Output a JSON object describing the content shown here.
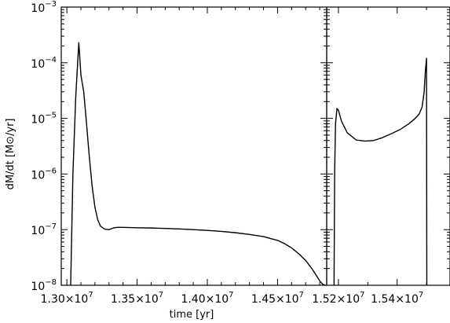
{
  "chart_data": {
    "type": "line",
    "xlabel": "time [yr]",
    "ylabel": "dM/dt [M⊙/yr]",
    "yscale": "log",
    "ylim": [
      1e-08,
      0.001
    ],
    "grid": false,
    "y_ticks": [
      {
        "value": 1e-08,
        "mantissa": "10",
        "exp": "−8"
      },
      {
        "value": 1e-07,
        "mantissa": "10",
        "exp": "−7"
      },
      {
        "value": 1e-06,
        "mantissa": "10",
        "exp": "−6"
      },
      {
        "value": 1e-05,
        "mantissa": "10",
        "exp": "−5"
      },
      {
        "value": 0.0001,
        "mantissa": "10",
        "exp": "−4"
      },
      {
        "value": 0.001,
        "mantissa": "10",
        "exp": "−3"
      }
    ],
    "panels": [
      {
        "xlim": [
          12960000,
          14850000
        ],
        "x_ticks": [
          {
            "value": 13000000,
            "mantissa": "1.30×10",
            "exp": "7"
          },
          {
            "value": 13500000,
            "mantissa": "1.35×10",
            "exp": "7"
          },
          {
            "value": 14000000,
            "mantissa": "1.40×10",
            "exp": "7"
          },
          {
            "value": 14500000,
            "mantissa": "1.45×10",
            "exp": "7"
          }
        ],
        "minor_step": 100000,
        "series": [
          {
            "x": [
              13027000,
              13043000,
              13063000,
              13085000,
              13100000,
              13120000,
              13140000,
              13160000,
              13180000,
              13200000,
              13220000,
              13240000,
              13270000,
              13300000,
              13330000,
              13360000,
              13400000,
              13500000,
              13600000,
              13700000,
              13800000,
              13900000,
              14000000,
              14100000,
              14200000,
              14300000,
              14400000,
              14500000,
              14550000,
              14600000,
              14650000,
              14700000,
              14750000,
              14780000,
              14800000,
              14820000,
              14840000
            ],
            "y": [
              1e-08,
              1e-06,
              2.4e-05,
              0.00023,
              6e-05,
              3e-05,
              8e-06,
              2e-06,
              6e-07,
              2.5e-07,
              1.5e-07,
              1.15e-07,
              1.02e-07,
              1e-07,
              1.07e-07,
              1.1e-07,
              1.1e-07,
              1.08e-07,
              1.07e-07,
              1.05e-07,
              1.03e-07,
              1e-07,
              9.7e-08,
              9.3e-08,
              8.8e-08,
              8.2e-08,
              7.5e-08,
              6.4e-08,
              5.6e-08,
              4.7e-08,
              3.7e-08,
              2.8e-08,
              1.9e-08,
              1.45e-08,
              1.2e-08,
              1.05e-08,
              1e-08
            ]
          }
        ]
      },
      {
        "xlim": [
          15160000,
          15580000
        ],
        "x_ticks": [
          {
            "value": 15200000,
            "mantissa": "1.52×10",
            "exp": "7"
          },
          {
            "value": 15400000,
            "mantissa": "1.54×10",
            "exp": "7"
          }
        ],
        "minor_step": 100000,
        "series": [
          {
            "x": [
              15185000,
              15187000,
              15190000,
              15195000,
              15200000,
              15210000,
              15230000,
              15260000,
              15290000,
              15320000,
              15350000,
              15380000,
              15410000,
              15440000,
              15460000,
              15475000,
              15485000,
              15492000,
              15496000,
              15500000,
              15501000
            ],
            "y": [
              1e-08,
              1e-06,
              8e-06,
              1.5e-05,
              1.4e-05,
              9e-06,
              5.5e-06,
              4.1e-06,
              3.9e-06,
              4e-06,
              4.5e-06,
              5.3e-06,
              6.3e-06,
              8e-06,
              9.8e-06,
              1.2e-05,
              1.6e-05,
              3e-05,
              7e-05,
              0.00012,
              1e-08
            ]
          }
        ]
      }
    ]
  }
}
